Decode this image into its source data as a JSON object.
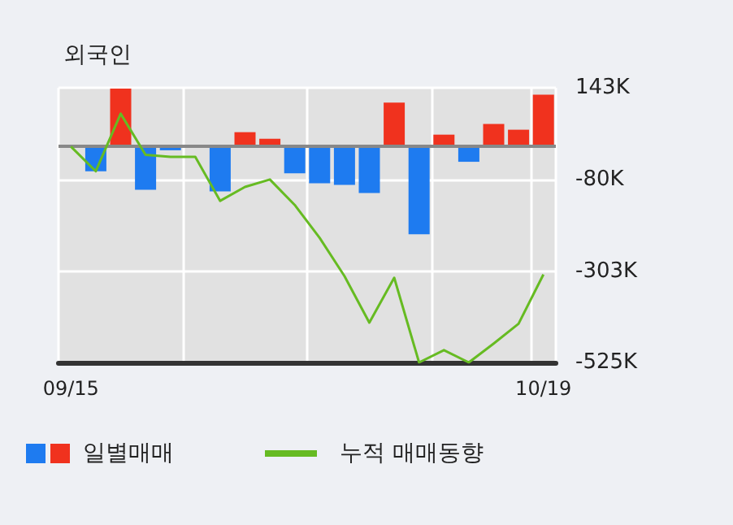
{
  "chart_data": {
    "type": "bar",
    "title": "외국인",
    "categories": [
      "09/15",
      null,
      null,
      null,
      null,
      null,
      null,
      null,
      null,
      null,
      null,
      null,
      null,
      null,
      null,
      null,
      null,
      null,
      null,
      "10/19"
    ],
    "series": [
      {
        "name": "일별매매",
        "values": [
          0,
          -60000,
          141000,
          -105000,
          -9000,
          0,
          -109000,
          35000,
          19000,
          -65000,
          -89000,
          -93000,
          -113000,
          107000,
          -213000,
          29000,
          -37000,
          55000,
          41000,
          126000
        ],
        "colors": [
          "#1e7bf0",
          "#1e7bf0",
          "#f0321e",
          "#1e7bf0",
          "#1e7bf0",
          "#1e7bf0",
          "#1e7bf0",
          "#f0321e",
          "#f0321e",
          "#1e7bf0",
          "#1e7bf0",
          "#1e7bf0",
          "#1e7bf0",
          "#f0321e",
          "#1e7bf0",
          "#f0321e",
          "#1e7bf0",
          "#f0321e",
          "#f0321e",
          "#f0321e"
        ]
      },
      {
        "name": "누적 매매동향",
        "type": "line",
        "color": "#66bb22",
        "values": [
          0,
          -60000,
          80000,
          -20000,
          -25000,
          -25000,
          -132000,
          -98000,
          -80000,
          -142000,
          -222000,
          -315000,
          -428000,
          -319000,
          -525000,
          -495000,
          -525000,
          -479000,
          -431000,
          -311000
        ]
      }
    ],
    "ylim": [
      -525000,
      143000
    ],
    "yticks": [
      {
        "value": 143000,
        "label": "143K"
      },
      {
        "value": -80000,
        "label": "-80K"
      },
      {
        "value": -303000,
        "label": "-303K"
      },
      {
        "value": -525000,
        "label": "-525K"
      }
    ],
    "ref_lines": [
      {
        "axis": "y",
        "value": 0,
        "color": "#888888"
      }
    ],
    "grid": true,
    "legend": "bottom",
    "marker": "none"
  }
}
